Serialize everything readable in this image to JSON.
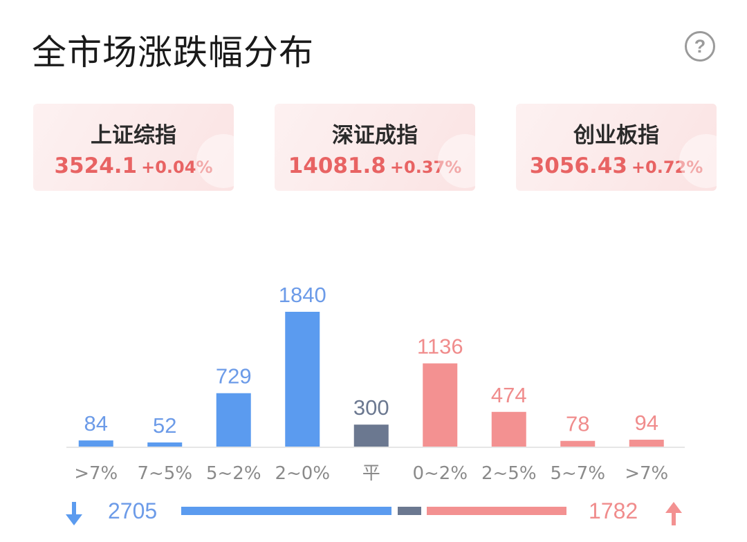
{
  "header": {
    "title": "全市场涨跌幅分布",
    "help_icon": "question-circle-icon"
  },
  "indices": [
    {
      "name": "上证综指",
      "price": "3524.1",
      "change": "+0.04%"
    },
    {
      "name": "深证成指",
      "price": "14081.8",
      "change": "+0.37%"
    },
    {
      "name": "创业板指",
      "price": "3056.43",
      "change": "+0.72%"
    }
  ],
  "colors": {
    "down": "#5b9bef",
    "down_label": "#6c9be8",
    "flat": "#6b7890",
    "flat_label": "#6b7890",
    "up": "#f39191",
    "up_label": "#f08c8c",
    "accent_red": "#e86363"
  },
  "chart_data": {
    "type": "bar",
    "title": "",
    "xlabel": "",
    "ylabel": "",
    "categories": [
      ">7%",
      "7~5%",
      "5~2%",
      "2~0%",
      "平",
      "0~2%",
      "2~5%",
      "5~7%",
      ">7%"
    ],
    "values": [
      84,
      52,
      729,
      1840,
      300,
      1136,
      474,
      78,
      94
    ],
    "groups": [
      "down",
      "down",
      "down",
      "down",
      "flat",
      "up",
      "up",
      "up",
      "up"
    ],
    "ylim": [
      0,
      1840
    ],
    "grid": false,
    "legend": "none"
  },
  "summary": {
    "down_total": "2705",
    "up_total": "1782",
    "down_icon": "arrow-down-icon",
    "up_icon": "arrow-up-icon"
  }
}
